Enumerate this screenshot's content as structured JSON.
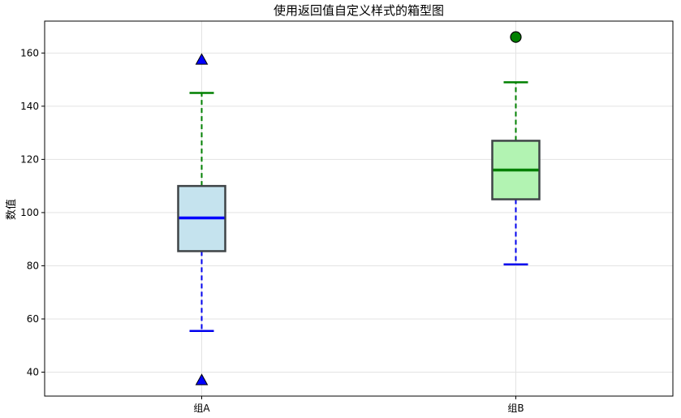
{
  "chart_data": {
    "type": "box",
    "title": "使用返回值自定义样式的箱型图",
    "xlabel": "",
    "ylabel": "数值",
    "ylim": [
      31,
      172
    ],
    "yticks": [
      40,
      60,
      80,
      100,
      120,
      140,
      160
    ],
    "grid": true,
    "categories": [
      "组A",
      "组B"
    ],
    "boxes": [
      {
        "category": "组A",
        "whisker_low": 55.5,
        "q1": 85.5,
        "median": 98,
        "q3": 110,
        "whisker_high": 145,
        "outliers": [
          157.5,
          37
        ],
        "box_color": "#c5e3ee",
        "lower_whisker_color": "#0000ee",
        "upper_whisker_color": "#008000",
        "median_color": "#0000ff",
        "outlier_marker": "triangle",
        "outlier_color": "#0000ff"
      },
      {
        "category": "组B",
        "whisker_low": 80.5,
        "q1": 105,
        "median": 116,
        "q3": 127,
        "whisker_high": 149,
        "outliers": [
          166
        ],
        "box_color": "#b2f3b2",
        "lower_whisker_color": "#0000ee",
        "upper_whisker_color": "#008000",
        "median_color": "#008000",
        "outlier_marker": "circle",
        "outlier_color": "#008000"
      }
    ],
    "box_edge_color": "#3f4447",
    "cap_color_low": "#0000ee",
    "cap_color_high": "#008000"
  }
}
